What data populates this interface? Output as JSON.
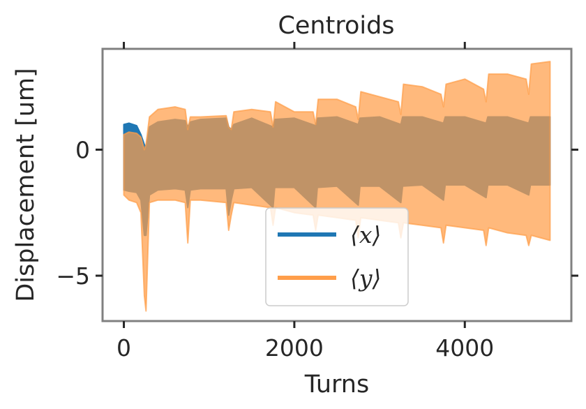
{
  "chart_data": {
    "type": "area",
    "title": "Centroids",
    "xlabel": "Turns",
    "ylabel": "Displacement [um]",
    "xlim": [
      -250,
      5250
    ],
    "ylim": [
      -6.8,
      4.0
    ],
    "xticks": [
      0,
      2000,
      4000
    ],
    "xtick_labels": [
      "0",
      "2000",
      "4000"
    ],
    "yticks": [
      0,
      -5
    ],
    "ytick_labels": [
      "0",
      "−5"
    ],
    "grid": false,
    "legend_position": "lower-center",
    "series": [
      {
        "name": "⟨x⟩",
        "color": "#1f77b4",
        "turns": [
          0,
          60,
          150,
          200,
          240,
          260,
          300,
          400,
          600,
          720,
          750,
          780,
          900,
          1200,
          1230,
          1260,
          1290,
          1500,
          1750,
          1770,
          2000,
          2250,
          2270,
          2500,
          2750,
          2770,
          3000,
          3250,
          3270,
          3500,
          3750,
          3770,
          4000,
          4250,
          4270,
          4500,
          4750,
          4770,
          5000
        ],
        "upper": [
          1.0,
          1.05,
          0.95,
          0.6,
          0.2,
          0.1,
          0.9,
          1.1,
          1.2,
          1.15,
          0.9,
          1.1,
          1.2,
          1.25,
          0.9,
          0.8,
          1.0,
          1.25,
          0.9,
          1.2,
          1.25,
          0.95,
          1.25,
          1.3,
          1.0,
          1.25,
          1.3,
          1.0,
          1.3,
          1.3,
          1.05,
          1.3,
          1.3,
          1.05,
          1.3,
          1.3,
          1.05,
          1.3,
          1.3
        ],
        "lower": [
          -1.6,
          -1.65,
          -1.7,
          -2.0,
          -3.4,
          -3.4,
          -1.8,
          -1.6,
          -1.55,
          -1.6,
          -2.3,
          -1.6,
          -1.55,
          -1.55,
          -2.6,
          -2.0,
          -1.55,
          -1.5,
          -2.3,
          -1.5,
          -1.5,
          -2.3,
          -1.5,
          -1.45,
          -2.2,
          -1.45,
          -1.45,
          -2.1,
          -1.45,
          -1.4,
          -2.0,
          -1.4,
          -1.4,
          -1.9,
          -1.4,
          -1.4,
          -1.8,
          -1.4,
          -1.4
        ]
      },
      {
        "name": "⟨y⟩",
        "color": "#ff9e4a",
        "turns": [
          0,
          60,
          150,
          200,
          240,
          260,
          300,
          400,
          600,
          720,
          750,
          780,
          900,
          1200,
          1230,
          1260,
          1290,
          1500,
          1720,
          1750,
          1780,
          2000,
          2220,
          2250,
          2280,
          2500,
          2720,
          2750,
          2780,
          3000,
          3220,
          3250,
          3280,
          3500,
          3720,
          3750,
          3780,
          4000,
          4220,
          4250,
          4280,
          4500,
          4720,
          4750,
          4780,
          5000
        ],
        "upper": [
          0.6,
          0.7,
          0.65,
          0.5,
          0.0,
          0.2,
          1.3,
          1.6,
          1.7,
          1.6,
          0.8,
          1.3,
          1.3,
          1.35,
          0.9,
          0.8,
          1.5,
          1.6,
          1.5,
          0.9,
          1.9,
          1.5,
          1.5,
          1.0,
          2.0,
          2.0,
          1.7,
          1.2,
          2.3,
          2.1,
          1.9,
          1.4,
          2.6,
          2.5,
          2.2,
          1.7,
          2.6,
          2.8,
          2.4,
          1.9,
          3.0,
          3.0,
          2.8,
          2.2,
          3.4,
          3.5
        ],
        "lower": [
          -1.8,
          -2.0,
          -2.1,
          -2.5,
          -5.8,
          -6.4,
          -2.1,
          -2.0,
          -2.0,
          -2.1,
          -3.7,
          -2.0,
          -2.0,
          -2.1,
          -3.2,
          -2.6,
          -2.1,
          -2.2,
          -2.3,
          -3.0,
          -2.3,
          -2.5,
          -2.6,
          -3.2,
          -2.6,
          -2.7,
          -2.8,
          -3.5,
          -2.7,
          -2.8,
          -2.9,
          -3.5,
          -2.9,
          -3.0,
          -3.1,
          -3.7,
          -3.0,
          -3.1,
          -3.2,
          -3.8,
          -3.1,
          -3.3,
          -3.4,
          -3.8,
          -3.4,
          -3.6
        ]
      }
    ]
  }
}
